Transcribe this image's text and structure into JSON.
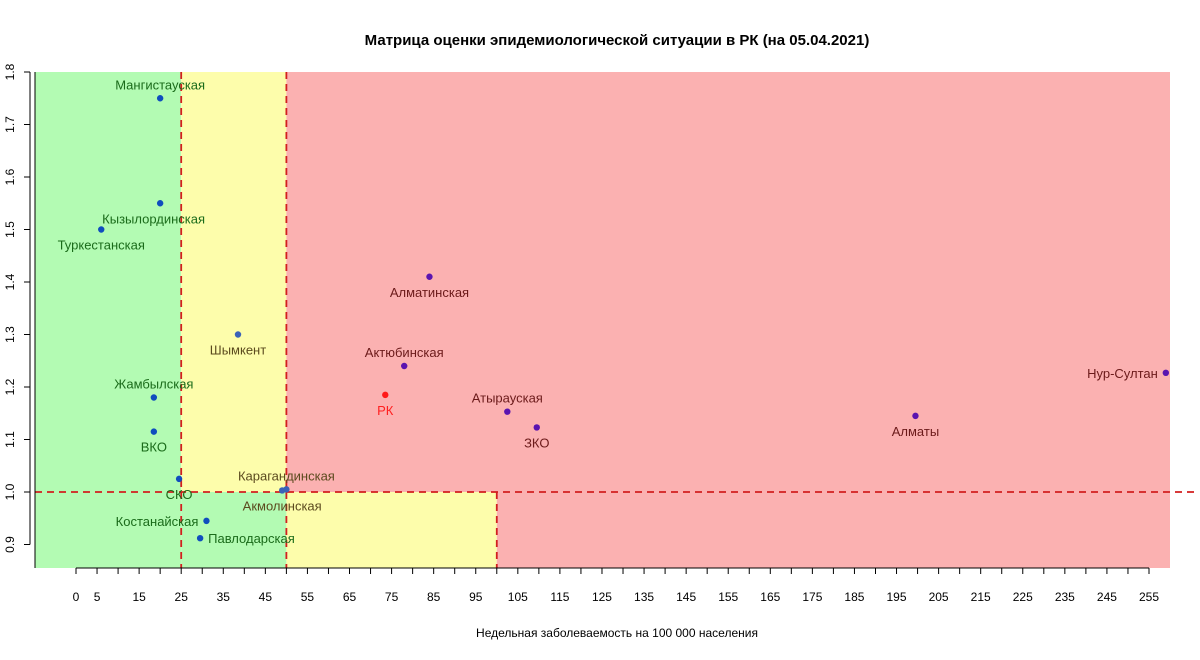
{
  "chart_data": {
    "type": "scatter",
    "title": "Матрица оценки эпидемиологической ситуации в РК (на 05.04.2021)",
    "xlabel": "Недельная заболеваемость на 100 000 населения",
    "ylabel": "",
    "xlim": [
      0,
      260
    ],
    "ylim": [
      0.85,
      1.8
    ],
    "x_ticks": [
      "0",
      "5",
      "15",
      "25",
      "35",
      "45",
      "55",
      "65",
      "75",
      "85",
      "95",
      "105",
      "115",
      "125",
      "135",
      "145",
      "155",
      "165",
      "175",
      "185",
      "195",
      "205",
      "215",
      "225",
      "235",
      "245",
      "255"
    ],
    "x_tick_values": [
      0,
      5,
      15,
      25,
      35,
      45,
      55,
      65,
      75,
      85,
      95,
      105,
      115,
      125,
      135,
      145,
      155,
      165,
      175,
      185,
      195,
      205,
      215,
      225,
      235,
      245,
      255
    ],
    "y_ticks": [
      "0.9",
      "1.0",
      "1.1",
      "1.2",
      "1.3",
      "1.4",
      "1.5",
      "1.6",
      "1.7",
      "1.8"
    ],
    "y_tick_values": [
      0.9,
      1.0,
      1.1,
      1.2,
      1.3,
      1.4,
      1.5,
      1.6,
      1.7,
      1.8
    ],
    "zones": [
      {
        "name": "green",
        "color": "#b3fbb3",
        "x": [
          0,
          25
        ],
        "y": [
          0.85,
          1.8
        ]
      },
      {
        "name": "green",
        "color": "#b3fbb3",
        "x": [
          25,
          50
        ],
        "y": [
          0.85,
          1.0
        ]
      },
      {
        "name": "yellow",
        "color": "#fdfdab",
        "x": [
          25,
          50
        ],
        "y": [
          1.0,
          1.8
        ]
      },
      {
        "name": "yellow",
        "color": "#fdfdab",
        "x": [
          50,
          100
        ],
        "y": [
          0.85,
          1.0
        ]
      },
      {
        "name": "red",
        "color": "#fbb1b1",
        "x": [
          50,
          260
        ],
        "y": [
          1.0,
          1.8
        ]
      },
      {
        "name": "red",
        "color": "#fbb1b1",
        "x": [
          100,
          260
        ],
        "y": [
          0.85,
          1.0
        ]
      }
    ],
    "reference_lines": [
      {
        "orientation": "vertical",
        "x": 25,
        "y": [
          0.85,
          1.8
        ]
      },
      {
        "orientation": "vertical",
        "x": 50,
        "y": [
          0.85,
          1.8
        ]
      },
      {
        "orientation": "vertical",
        "x": 100,
        "y": [
          0.85,
          1.0
        ]
      },
      {
        "orientation": "horizontal",
        "y": 1.0
      }
    ],
    "reference_line_color": "#d21f1f",
    "point_color": "#1552c4",
    "points": [
      {
        "label": "Мангистауская",
        "x": 20,
        "y": 1.75,
        "label_pos": "above",
        "color": "#0f4dbe",
        "label_color": "#1a6b1a"
      },
      {
        "label": "Кызылординская",
        "x": 20,
        "y": 1.55,
        "label_pos": "below-right",
        "color": "#0f4dbe",
        "label_color": "#1a6b1a"
      },
      {
        "label": "Туркестанская",
        "x": 6,
        "y": 1.5,
        "label_pos": "below",
        "color": "#0f4dbe",
        "label_color": "#1a6b1a"
      },
      {
        "label": "Шымкент",
        "x": 38.5,
        "y": 1.3,
        "label_pos": "below",
        "color": "#3a62b8",
        "label_color": "#5b4a1e"
      },
      {
        "label": "Жамбылская",
        "x": 18.5,
        "y": 1.18,
        "label_pos": "above",
        "color": "#0f4dbe",
        "label_color": "#1a6b1a"
      },
      {
        "label": "ВКО",
        "x": 18.5,
        "y": 1.115,
        "label_pos": "below",
        "color": "#0f4dbe",
        "label_color": "#1a6b1a"
      },
      {
        "label": "СКО",
        "x": 24.5,
        "y": 1.025,
        "label_pos": "below",
        "color": "#0f4dbe",
        "label_color": "#1a6b1a"
      },
      {
        "label": "Карагандинская",
        "x": 50,
        "y": 1.005,
        "label_pos": "above",
        "color": "#3a62b8",
        "label_color": "#5b4a1e"
      },
      {
        "label": "Акмолинская",
        "x": 49,
        "y": 1.003,
        "label_pos": "below",
        "color": "#3a62b8",
        "label_color": "#5b4a1e"
      },
      {
        "label": "Костанайская",
        "x": 31,
        "y": 0.945,
        "label_pos": "left",
        "color": "#0f4dbe",
        "label_color": "#1a6b1a"
      },
      {
        "label": "Павлодарская",
        "x": 29.5,
        "y": 0.912,
        "label_pos": "right",
        "color": "#0f4dbe",
        "label_color": "#1a6b1a"
      },
      {
        "label": "Алматинская",
        "x": 84,
        "y": 1.41,
        "label_pos": "below",
        "color": "#5a14b0",
        "label_color": "#6b1a1a"
      },
      {
        "label": "Актюбинская",
        "x": 78,
        "y": 1.24,
        "label_pos": "above",
        "color": "#5a14b0",
        "label_color": "#6b1a1a"
      },
      {
        "label": "РК",
        "x": 73.5,
        "y": 1.185,
        "label_pos": "below",
        "color": "#ff1a1a",
        "label_color": "#ff2020"
      },
      {
        "label": "Атырауская",
        "x": 102.5,
        "y": 1.153,
        "label_pos": "above",
        "color": "#5a14b0",
        "label_color": "#6b1a1a"
      },
      {
        "label": "ЗКО",
        "x": 109.5,
        "y": 1.123,
        "label_pos": "below",
        "color": "#5a14b0",
        "label_color": "#6b1a1a"
      },
      {
        "label": "Алматы",
        "x": 199.5,
        "y": 1.145,
        "label_pos": "below",
        "color": "#5a14b0",
        "label_color": "#6b1a1a"
      },
      {
        "label": "Нур-Султан",
        "x": 259,
        "y": 1.227,
        "label_pos": "left",
        "color": "#5a14b0",
        "label_color": "#6b1a1a"
      }
    ]
  }
}
